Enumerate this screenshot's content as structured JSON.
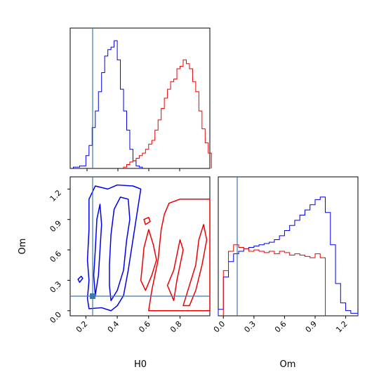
{
  "chart_data": {
    "type": "corner",
    "parameters": [
      "H0",
      "Om"
    ],
    "xlabel_bottom_left": "H0",
    "xlabel_bottom_right": "Om",
    "ylabel_left": "Om",
    "truth": {
      "H0": 0.24,
      "Om": 0.12
    },
    "colors": {
      "blue": "#0000ee",
      "red": "#ee0000",
      "truth": "#3d78b0"
    },
    "h0_axis": {
      "range": [
        0.1,
        0.99
      ],
      "ticks": [
        "0.2",
        "0.4",
        "0.6",
        "0.8"
      ]
    },
    "om_axis": {
      "range": [
        -0.05,
        1.32
      ],
      "ticks": [
        "0.0",
        "0.3",
        "0.6",
        "0.9",
        "1.2"
      ]
    },
    "hist_h0": {
      "series": [
        {
          "color": "blue",
          "edges": [
            0.12,
            0.16,
            0.2,
            0.22,
            0.24,
            0.26,
            0.28,
            0.3,
            0.32,
            0.34,
            0.36,
            0.38,
            0.4,
            0.42,
            0.44,
            0.46,
            0.48,
            0.5,
            0.52,
            0.54,
            0.56
          ],
          "values": [
            0.01,
            0.02,
            0.1,
            0.18,
            0.32,
            0.45,
            0.6,
            0.75,
            0.88,
            0.93,
            0.95,
            1.0,
            0.85,
            0.62,
            0.45,
            0.3,
            0.15,
            0.06,
            0.02,
            0.01
          ]
        },
        {
          "color": "red",
          "edges": [
            0.44,
            0.46,
            0.48,
            0.5,
            0.52,
            0.54,
            0.56,
            0.58,
            0.6,
            0.62,
            0.64,
            0.66,
            0.68,
            0.7,
            0.72,
            0.74,
            0.76,
            0.78,
            0.8,
            0.82,
            0.84,
            0.86,
            0.88,
            0.9,
            0.92,
            0.94,
            0.96,
            0.98,
            1.0
          ],
          "values": [
            0.01,
            0.03,
            0.05,
            0.06,
            0.08,
            0.1,
            0.12,
            0.15,
            0.19,
            0.22,
            0.3,
            0.38,
            0.47,
            0.55,
            0.62,
            0.68,
            0.7,
            0.78,
            0.8,
            0.85,
            0.82,
            0.78,
            0.68,
            0.6,
            0.45,
            0.31,
            0.2,
            0.12
          ]
        }
      ]
    },
    "hist_om": {
      "series": [
        {
          "color": "blue",
          "edges": [
            -0.05,
            0.0,
            0.05,
            0.1,
            0.15,
            0.2,
            0.25,
            0.3,
            0.35,
            0.4,
            0.45,
            0.5,
            0.55,
            0.6,
            0.65,
            0.7,
            0.75,
            0.8,
            0.85,
            0.9,
            0.95,
            1.0,
            1.05,
            1.1,
            1.15,
            1.2,
            1.25,
            1.32
          ],
          "values": [
            0.05,
            0.3,
            0.42,
            0.48,
            0.5,
            0.52,
            0.53,
            0.54,
            0.55,
            0.56,
            0.57,
            0.59,
            0.62,
            0.66,
            0.7,
            0.74,
            0.78,
            0.82,
            0.86,
            0.9,
            0.92,
            0.8,
            0.55,
            0.25,
            0.1,
            0.04,
            0.02
          ]
        },
        {
          "color": "red",
          "edges": [
            0.0,
            0.05,
            0.1,
            0.15,
            0.2,
            0.25,
            0.3,
            0.35,
            0.4,
            0.45,
            0.5,
            0.55,
            0.6,
            0.65,
            0.7,
            0.75,
            0.8,
            0.85,
            0.9,
            0.95,
            1.0
          ],
          "values": [
            0.35,
            0.5,
            0.55,
            0.53,
            0.52,
            0.5,
            0.51,
            0.5,
            0.49,
            0.5,
            0.48,
            0.5,
            0.49,
            0.47,
            0.48,
            0.47,
            0.46,
            0.45,
            0.48,
            0.45
          ]
        }
      ]
    },
    "contours": [
      {
        "color": "blue",
        "name": "blue-outer",
        "points": [
          [
            0.22,
            0.02
          ],
          [
            0.3,
            0.03
          ],
          [
            0.36,
            0.0
          ],
          [
            0.4,
            0.05
          ],
          [
            0.44,
            0.15
          ],
          [
            0.47,
            0.4
          ],
          [
            0.5,
            0.7
          ],
          [
            0.53,
            1.0
          ],
          [
            0.55,
            1.2
          ],
          [
            0.5,
            1.23
          ],
          [
            0.4,
            1.24
          ],
          [
            0.34,
            1.2
          ],
          [
            0.26,
            1.23
          ],
          [
            0.22,
            1.1
          ],
          [
            0.22,
            0.8
          ],
          [
            0.21,
            0.5
          ],
          [
            0.22,
            0.3
          ],
          [
            0.21,
            0.12
          ]
        ]
      },
      {
        "color": "blue",
        "name": "blue-inner-left",
        "points": [
          [
            0.26,
            0.15
          ],
          [
            0.28,
            0.35
          ],
          [
            0.29,
            0.6
          ],
          [
            0.3,
            0.85
          ],
          [
            0.29,
            1.05
          ],
          [
            0.27,
            0.9
          ],
          [
            0.26,
            0.6
          ],
          [
            0.25,
            0.35
          ]
        ]
      },
      {
        "color": "blue",
        "name": "blue-inner-main",
        "points": [
          [
            0.36,
            0.1
          ],
          [
            0.4,
            0.2
          ],
          [
            0.44,
            0.4
          ],
          [
            0.46,
            0.7
          ],
          [
            0.48,
            0.9
          ],
          [
            0.47,
            1.1
          ],
          [
            0.42,
            1.12
          ],
          [
            0.38,
            1.0
          ],
          [
            0.36,
            0.75
          ],
          [
            0.35,
            0.45
          ],
          [
            0.35,
            0.25
          ]
        ]
      },
      {
        "color": "blue",
        "name": "blue-small",
        "points": [
          [
            0.16,
            0.28
          ],
          [
            0.18,
            0.32
          ],
          [
            0.17,
            0.34
          ],
          [
            0.15,
            0.31
          ]
        ]
      },
      {
        "color": "red",
        "name": "red-outer",
        "points": [
          [
            0.6,
            0.0
          ],
          [
            0.7,
            0.0
          ],
          [
            0.8,
            0.0
          ],
          [
            0.9,
            0.0
          ],
          [
            0.99,
            0.0
          ],
          [
            0.99,
            1.1
          ],
          [
            0.92,
            1.1
          ],
          [
            0.8,
            1.1
          ],
          [
            0.73,
            1.06
          ],
          [
            0.7,
            0.95
          ],
          [
            0.68,
            0.8
          ],
          [
            0.67,
            0.65
          ],
          [
            0.66,
            0.5
          ],
          [
            0.64,
            0.35
          ],
          [
            0.62,
            0.2
          ]
        ]
      },
      {
        "color": "red",
        "name": "red-inner-left",
        "points": [
          [
            0.58,
            0.2
          ],
          [
            0.62,
            0.35
          ],
          [
            0.65,
            0.5
          ],
          [
            0.63,
            0.65
          ],
          [
            0.6,
            0.8
          ],
          [
            0.57,
            0.62
          ],
          [
            0.56,
            0.45
          ],
          [
            0.55,
            0.3
          ]
        ]
      },
      {
        "color": "red",
        "name": "red-inner-mid",
        "points": [
          [
            0.72,
            0.25
          ],
          [
            0.76,
            0.4
          ],
          [
            0.78,
            0.55
          ],
          [
            0.8,
            0.7
          ],
          [
            0.82,
            0.6
          ],
          [
            0.8,
            0.45
          ],
          [
            0.78,
            0.3
          ],
          [
            0.76,
            0.1
          ]
        ]
      },
      {
        "color": "red",
        "name": "red-inner-right",
        "points": [
          [
            0.82,
            0.05
          ],
          [
            0.86,
            0.25
          ],
          [
            0.9,
            0.45
          ],
          [
            0.92,
            0.7
          ],
          [
            0.95,
            0.85
          ],
          [
            0.97,
            0.7
          ],
          [
            0.94,
            0.45
          ],
          [
            0.9,
            0.2
          ],
          [
            0.86,
            0.05
          ]
        ]
      },
      {
        "color": "red",
        "name": "red-small",
        "points": [
          [
            0.58,
            0.85
          ],
          [
            0.61,
            0.88
          ],
          [
            0.6,
            0.92
          ],
          [
            0.57,
            0.9
          ]
        ]
      }
    ]
  }
}
